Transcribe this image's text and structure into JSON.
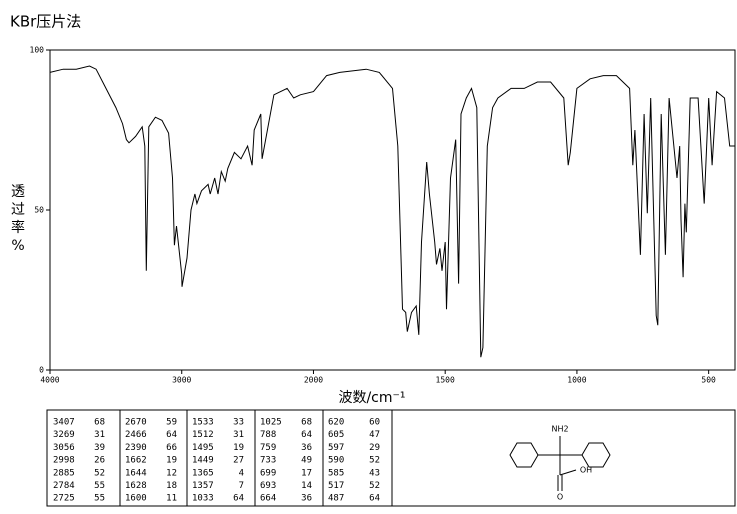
{
  "chart_data": {
    "type": "line",
    "title": "KBr压片法",
    "x_label": "波数/cm⁻¹",
    "y_label": "%透过率",
    "color": "#000000",
    "xlim": [
      4000,
      400
    ],
    "xticks": [
      4000,
      3000,
      2000,
      1500,
      1000,
      500
    ],
    "ylim": [
      0,
      100
    ],
    "yticks": [
      0,
      50,
      100
    ],
    "x": [
      4000,
      3900,
      3800,
      3700,
      3650,
      3600,
      3500,
      3450,
      3420,
      3400,
      3350,
      3300,
      3280,
      3269,
      3250,
      3200,
      3150,
      3100,
      3070,
      3056,
      3040,
      3000,
      2998,
      2960,
      2930,
      2900,
      2885,
      2850,
      2800,
      2784,
      2750,
      2725,
      2700,
      2670,
      2650,
      2600,
      2550,
      2500,
      2466,
      2450,
      2400,
      2390,
      2300,
      2200,
      2150,
      2100,
      2000,
      1950,
      1900,
      1800,
      1750,
      1700,
      1680,
      1662,
      1650,
      1644,
      1628,
      1610,
      1600,
      1590,
      1570,
      1560,
      1540,
      1533,
      1520,
      1512,
      1500,
      1495,
      1480,
      1460,
      1449,
      1440,
      1420,
      1400,
      1380,
      1365,
      1357,
      1340,
      1320,
      1300,
      1250,
      1200,
      1150,
      1100,
      1050,
      1033,
      1025,
      1000,
      950,
      900,
      850,
      800,
      788,
      780,
      759,
      745,
      733,
      720,
      699,
      693,
      680,
      664,
      650,
      620,
      610,
      605,
      597,
      590,
      585,
      570,
      540,
      517,
      500,
      487,
      470,
      440,
      420,
      400
    ],
    "values": [
      93,
      94,
      94,
      95,
      94,
      90,
      82,
      77,
      72,
      71,
      73,
      76,
      70,
      31,
      76,
      79,
      78,
      74,
      60,
      39,
      45,
      30,
      26,
      35,
      50,
      55,
      52,
      56,
      58,
      55,
      60,
      55,
      62,
      59,
      63,
      68,
      66,
      70,
      64,
      75,
      80,
      66,
      86,
      88,
      85,
      86,
      87,
      92,
      93,
      94,
      93,
      88,
      70,
      19,
      18,
      12,
      18,
      20,
      11,
      40,
      65,
      55,
      40,
      33,
      38,
      31,
      40,
      19,
      60,
      72,
      27,
      80,
      85,
      88,
      82,
      4,
      7,
      70,
      82,
      85,
      88,
      88,
      90,
      90,
      85,
      64,
      68,
      88,
      91,
      92,
      92,
      88,
      64,
      75,
      36,
      80,
      49,
      85,
      17,
      14,
      80,
      36,
      85,
      60,
      70,
      47,
      29,
      52,
      43,
      85,
      85,
      52,
      85,
      64,
      87,
      85,
      70,
      70
    ],
    "peak_table": [
      [
        3407,
        68
      ],
      [
        3269,
        31
      ],
      [
        3056,
        39
      ],
      [
        2998,
        26
      ],
      [
        2885,
        52
      ],
      [
        2784,
        55
      ],
      [
        2725,
        55
      ],
      [
        2670,
        59
      ],
      [
        2466,
        64
      ],
      [
        2390,
        66
      ],
      [
        1662,
        19
      ],
      [
        1644,
        12
      ],
      [
        1628,
        18
      ],
      [
        1600,
        11
      ],
      [
        1533,
        33
      ],
      [
        1512,
        31
      ],
      [
        1495,
        19
      ],
      [
        1449,
        27
      ],
      [
        1365,
        4
      ],
      [
        1357,
        7
      ],
      [
        1033,
        64
      ],
      [
        1025,
        68
      ],
      [
        788,
        64
      ],
      [
        759,
        36
      ],
      [
        733,
        49
      ],
      [
        699,
        17
      ],
      [
        693,
        14
      ],
      [
        664,
        36
      ],
      [
        620,
        60
      ],
      [
        605,
        47
      ],
      [
        597,
        29
      ],
      [
        590,
        52
      ],
      [
        585,
        43
      ],
      [
        517,
        52
      ],
      [
        487,
        64
      ]
    ],
    "structure": {
      "labels": [
        "NH2",
        "OH",
        "O"
      ]
    }
  }
}
